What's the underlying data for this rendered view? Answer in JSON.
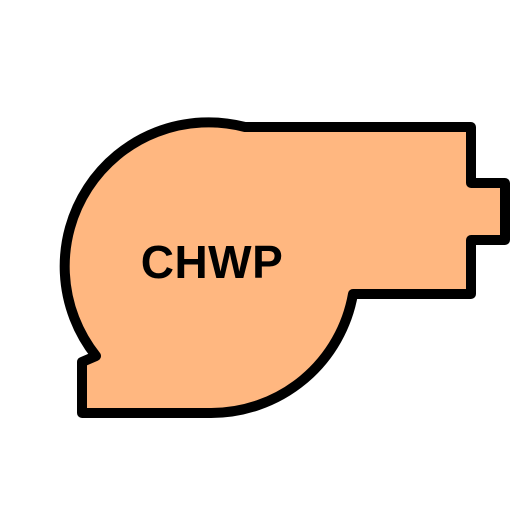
{
  "pump": {
    "label": "CHWP",
    "fill_color": "#FFB780",
    "outline_color": "#000000",
    "icon": "centrifugal-pump-icon"
  }
}
